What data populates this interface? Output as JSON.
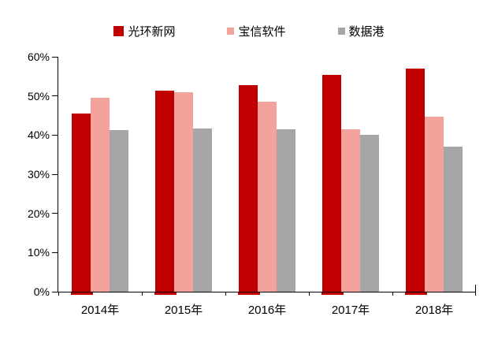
{
  "chart_data": {
    "type": "bar",
    "title": "",
    "categories": [
      "2014年",
      "2015年",
      "2016年",
      "2017年",
      "2018年"
    ],
    "series": [
      {
        "name": "光环新网",
        "color": "#C00000",
        "values": [
          45.5,
          51.3,
          52.8,
          55.4,
          57.0
        ]
      },
      {
        "name": "宝信软件",
        "color": "#F4A29C",
        "values": [
          49.6,
          51.0,
          48.6,
          41.5,
          44.8
        ]
      },
      {
        "name": "数据港",
        "color": "#A6A6A6",
        "values": [
          41.2,
          41.6,
          41.4,
          40.0,
          37.0
        ]
      }
    ],
    "ylim": [
      0,
      60
    ],
    "ytick_step": 10,
    "ytick_labels": [
      "0%",
      "10%",
      "20%",
      "30%",
      "40%",
      "50%",
      "60%"
    ],
    "xlabel": "",
    "ylabel": "",
    "legend_position": "top",
    "legend_entries": [
      "光环新网",
      "宝信软件",
      "数据港"
    ],
    "grid": false,
    "axis_color": "#000000",
    "text_color": "#000000",
    "background_color": "#FFFFFF"
  }
}
